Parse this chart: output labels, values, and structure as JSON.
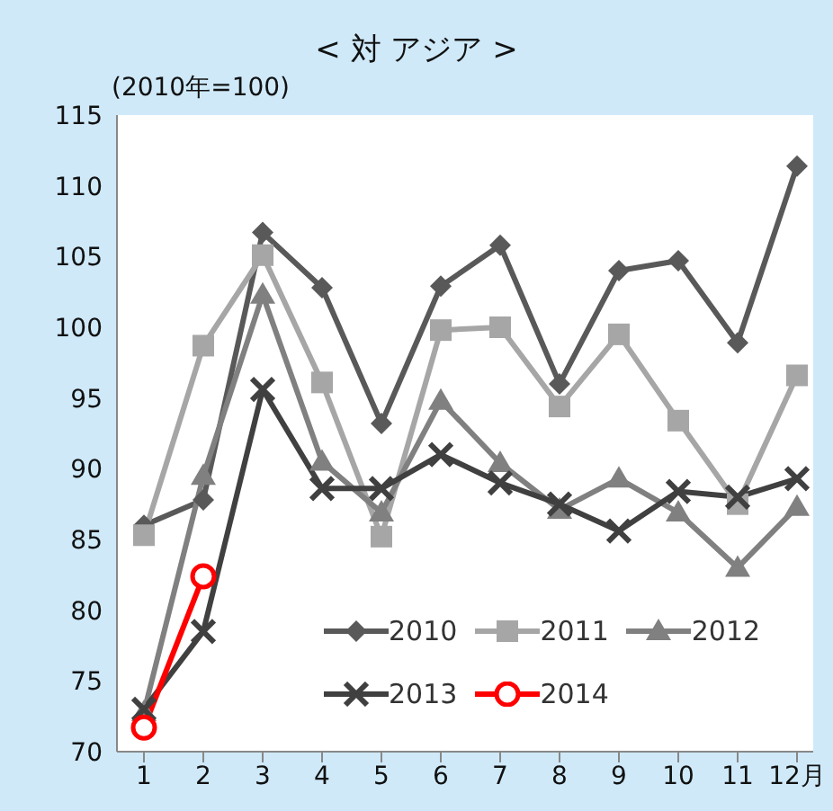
{
  "chart_data": {
    "type": "line",
    "title": "< 対 アジア >",
    "annotations": [
      "(2010年=100)"
    ],
    "categories": [
      "1",
      "2",
      "3",
      "4",
      "5",
      "6",
      "7",
      "8",
      "9",
      "10",
      "11",
      "12月"
    ],
    "ylim": [
      70,
      115
    ],
    "yticks": [
      70,
      75,
      80,
      85,
      90,
      95,
      100,
      105,
      110,
      115
    ],
    "grid": false,
    "legend": "bottom right",
    "series": [
      {
        "name": "2010",
        "color": "#595959",
        "marker": "diamond",
        "values": [
          86.0,
          87.8,
          106.7,
          102.8,
          93.2,
          102.9,
          105.8,
          96.0,
          104.0,
          104.7,
          98.9,
          111.4
        ]
      },
      {
        "name": "2011",
        "color": "#a6a6a6",
        "marker": "square",
        "values": [
          85.3,
          98.7,
          105.1,
          96.1,
          85.2,
          99.8,
          100.0,
          94.4,
          99.5,
          93.4,
          87.5,
          96.6
        ]
      },
      {
        "name": "2012",
        "color": "#808080",
        "marker": "triangle",
        "values": [
          72.8,
          89.5,
          102.3,
          90.5,
          86.9,
          94.8,
          90.4,
          87.1,
          89.3,
          86.9,
          83.0,
          87.3
        ]
      },
      {
        "name": "2013",
        "color": "#404040",
        "marker": "cross",
        "values": [
          73.0,
          78.5,
          95.6,
          88.6,
          88.6,
          91.0,
          89.0,
          87.5,
          85.6,
          88.4,
          88.0,
          89.3
        ]
      },
      {
        "name": "2014",
        "color": "#ff0000",
        "marker": "circle",
        "values": [
          71.7,
          82.4,
          null,
          null,
          null,
          null,
          null,
          null,
          null,
          null,
          null,
          null
        ]
      }
    ]
  }
}
